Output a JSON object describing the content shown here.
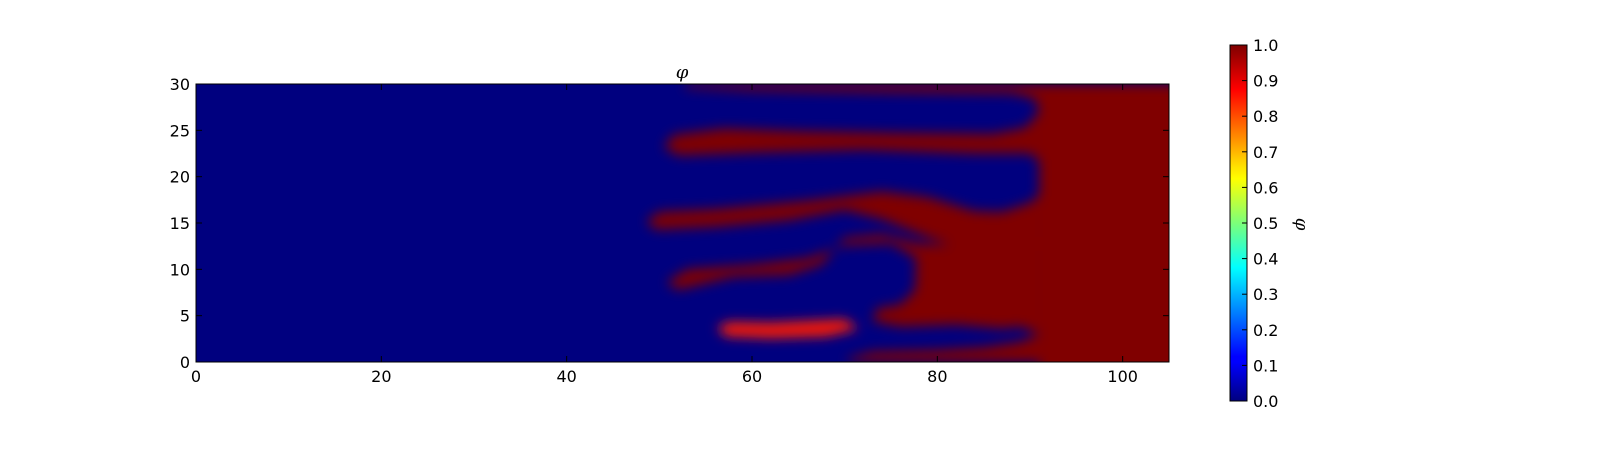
{
  "chart_data": {
    "type": "heatmap",
    "title": "φ",
    "xlabel": "",
    "ylabel": "",
    "xlim": [
      0,
      105
    ],
    "ylim": [
      0,
      30
    ],
    "xticks": [
      "0",
      "20",
      "40",
      "60",
      "80",
      "100"
    ],
    "yticks": [
      "0",
      "5",
      "10",
      "15",
      "20",
      "25",
      "30"
    ],
    "colormap": "jet",
    "colorbar": {
      "label": "φ",
      "range": [
        0.0,
        1.0
      ],
      "ticks": [
        "0.0",
        "0.1",
        "0.2",
        "0.3",
        "0.4",
        "0.5",
        "0.6",
        "0.7",
        "0.8",
        "0.9",
        "1.0"
      ]
    },
    "background_value": 0.0,
    "saturated_region": {
      "value": 1.0,
      "x_from": 91,
      "x_to": 105,
      "y_from": 0,
      "y_to": 30
    },
    "fingers": [
      {
        "value": 1.0,
        "points": [
          [
            52.8,
            29.6
          ],
          [
            60,
            29.3
          ],
          [
            75,
            29.1
          ],
          [
            88,
            29.0
          ],
          [
            90.5,
            28.4
          ],
          [
            91,
            27
          ],
          [
            89.5,
            25.3
          ],
          [
            86,
            24.6
          ],
          [
            76,
            24.7
          ],
          [
            65,
            24.9
          ],
          [
            57,
            25.2
          ],
          [
            51.5,
            24.5
          ],
          [
            50.5,
            23.2
          ],
          [
            52,
            22.3
          ],
          [
            60,
            22.6
          ],
          [
            72,
            22.9
          ],
          [
            84,
            22.5
          ],
          [
            90,
            22.5
          ],
          [
            91.6,
            21.2
          ],
          [
            91.6,
            18.5
          ],
          [
            90,
            17.2
          ],
          [
            87,
            16.2
          ],
          [
            84,
            16.3
          ],
          [
            79,
            17.8
          ],
          [
            74,
            18.4
          ],
          [
            66,
            17.4
          ],
          [
            56,
            16.5
          ],
          [
            50,
            16.2
          ],
          [
            48.6,
            15.2
          ],
          [
            49.6,
            14.3
          ],
          [
            56,
            14.6
          ],
          [
            64,
            15.3
          ],
          [
            70,
            16.4
          ],
          [
            74,
            15.4
          ],
          [
            79,
            13.4
          ],
          [
            84,
            11.8
          ],
          [
            88.5,
            10.6
          ],
          [
            90.5,
            11
          ],
          [
            91.2,
            12.8
          ],
          [
            90.2,
            14.2
          ],
          [
            87,
            13.6
          ],
          [
            82,
            12.6
          ],
          [
            78,
            12.8
          ],
          [
            74,
            13.8
          ],
          [
            70,
            13.4
          ],
          [
            67.5,
            10.5
          ],
          [
            64,
            9.4
          ],
          [
            58,
            9.2
          ],
          [
            52,
            7.8
          ],
          [
            50.8,
            8.6
          ],
          [
            53,
            10
          ],
          [
            60,
            10.5
          ],
          [
            66,
            11.2
          ],
          [
            70,
            12.6
          ],
          [
            75,
            12.8
          ],
          [
            77.7,
            11.2
          ],
          [
            77.6,
            7.8
          ],
          [
            76,
            6.2
          ],
          [
            73.5,
            5.8
          ],
          [
            73,
            4.4
          ],
          [
            76,
            3.8
          ],
          [
            82,
            4
          ],
          [
            84.5,
            3.8
          ],
          [
            87,
            3.6
          ],
          [
            89,
            3.8
          ],
          [
            91,
            3
          ],
          [
            89,
            2.2
          ],
          [
            85,
            1.6
          ],
          [
            80,
            1.3
          ],
          [
            73,
            1.1
          ],
          [
            70.2,
            0.3
          ],
          [
            70.5,
            0
          ],
          [
            91,
            0
          ],
          [
            91,
            30
          ],
          [
            52.8,
            30
          ]
        ]
      },
      {
        "value": 0.85,
        "points": [
          [
            56.2,
            3.7
          ],
          [
            57.5,
            4.3
          ],
          [
            62,
            4.2
          ],
          [
            66,
            4.4
          ],
          [
            70,
            4.6
          ],
          [
            71.5,
            3.6
          ],
          [
            68,
            2.8
          ],
          [
            62,
            2.6
          ],
          [
            57.2,
            2.8
          ]
        ]
      }
    ]
  }
}
